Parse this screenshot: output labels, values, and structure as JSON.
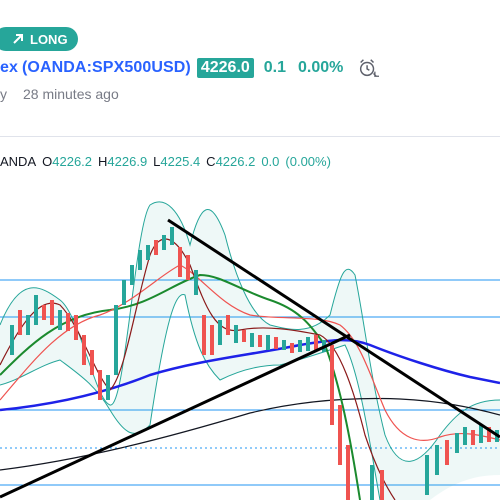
{
  "badge": {
    "label": "LONG"
  },
  "header": {
    "symbol_prefix": "ex",
    "symbol": "(OANDA:SPX500USD)",
    "price": "4226.0",
    "change": "0.1",
    "change_pct": "0.00%",
    "meta_left": "y",
    "time_ago": "28 minutes ago"
  },
  "ohlc": {
    "prefix": "ANDA",
    "o_label": "O",
    "o": "4226.2",
    "h_label": "H",
    "h": "4226.9",
    "l_label": "L",
    "l": "4225.4",
    "c_label": "C",
    "c": "4226.2",
    "chg": "0.0",
    "chg_pct": "(0.00%)"
  },
  "colors": {
    "accent": "#26a69a",
    "link": "#2962ff",
    "bear": "#ef5350",
    "bull": "#26a69a"
  },
  "icons": {
    "badge": "arrow-up-right-icon",
    "alert": "alarm-clock-icon"
  }
}
